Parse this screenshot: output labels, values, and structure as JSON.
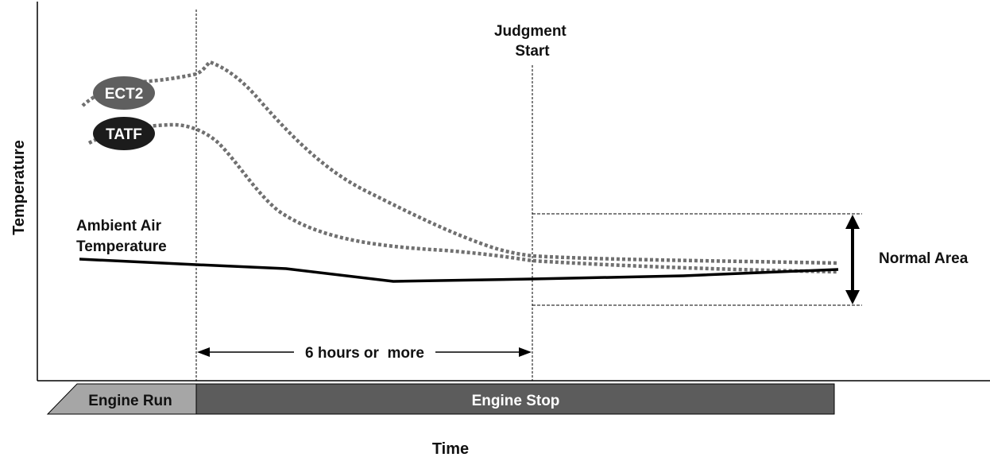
{
  "diagram": {
    "y_axis_label": "Temperature",
    "x_axis_label": "Time",
    "judgment_label": [
      "Judgment",
      "Start"
    ],
    "duration_label": "6 hours or  more",
    "normal_area_label": "Normal Area",
    "ambient_label": [
      "Ambient Air",
      "Temperature"
    ],
    "series": [
      {
        "name": "ECT2",
        "style": "dotted",
        "badge_fill": "#5f5f5f"
      },
      {
        "name": "TATF",
        "style": "dotted",
        "badge_fill": "#1c1c1c"
      },
      {
        "name": "Ambient Air Temperature",
        "style": "solid"
      }
    ],
    "phases": [
      {
        "label": "Engine Run",
        "fill": "#a6a6a6"
      },
      {
        "label": "Engine Stop",
        "fill": "#5c5c5c"
      }
    ],
    "colors": {
      "axis": "#000000",
      "dotted_curve": "#707070",
      "ambient_curve": "#000000",
      "guide_line": "#000000",
      "phase_text": "#ffffff"
    }
  }
}
